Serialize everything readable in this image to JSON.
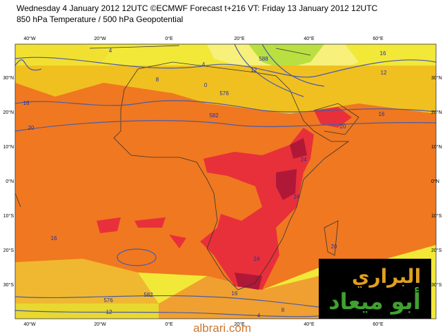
{
  "header": {
    "line1": "Wednesday 4 January 2012 12UTC ©ECMWF Forecast t+216 VT: Friday 13 January 2012 12UTC",
    "line2": "850 hPa Temperature / 500 hPa Geopotential"
  },
  "map": {
    "lon_labels": [
      "40°W",
      "20°W",
      "0°E",
      "20°E",
      "40°E",
      "60°E"
    ],
    "lat_labels": [
      "30°N",
      "20°N",
      "10°N",
      "0°N",
      "10°S",
      "20°S",
      "30°S"
    ],
    "contour_labels": [
      "4",
      "4",
      "8",
      "0",
      "576",
      "582",
      "588",
      "12",
      "16",
      "16",
      "20",
      "20",
      "24",
      "24",
      "24",
      "20",
      "16",
      "12",
      "582",
      "576",
      "16",
      "4",
      "8",
      "12",
      "16"
    ]
  },
  "logo": {
    "line1": "البراري",
    "line2": "أبو ميعاد"
  },
  "footer": "albrari.com"
}
